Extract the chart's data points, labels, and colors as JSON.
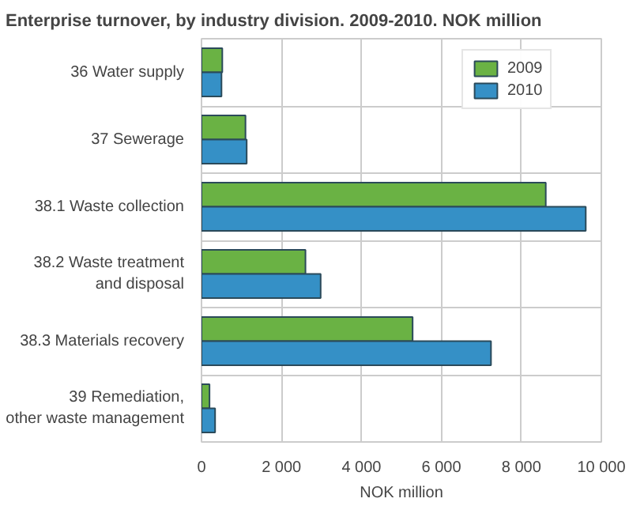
{
  "chart_data": {
    "type": "bar",
    "orientation": "horizontal",
    "title": "Enterprise turnover, by industry division. 2009-2010. NOK million",
    "xlabel": "NOK million",
    "categories": [
      "36 Water supply",
      "37 Sewerage",
      "38.1 Waste collection",
      "38.2 Waste treatment\nand disposal",
      "38.3 Materials recovery",
      "39 Remediation,\nother waste management"
    ],
    "series": [
      {
        "name": "2009",
        "color": "#6ab244",
        "values": [
          520,
          1100,
          8610,
          2600,
          5280,
          200
        ]
      },
      {
        "name": "2010",
        "color": "#3590c6",
        "values": [
          500,
          1130,
          9610,
          2980,
          7240,
          340
        ]
      }
    ],
    "xlim": [
      0,
      10000
    ],
    "xticks": [
      {
        "value": 0,
        "label": "0"
      },
      {
        "value": 2000,
        "label": "2 000"
      },
      {
        "value": 4000,
        "label": "4 000"
      },
      {
        "value": 6000,
        "label": "6 000"
      },
      {
        "value": 8000,
        "label": "8 000"
      },
      {
        "value": 10000,
        "label": "10 000"
      }
    ],
    "grid": true,
    "legend": "top right"
  }
}
